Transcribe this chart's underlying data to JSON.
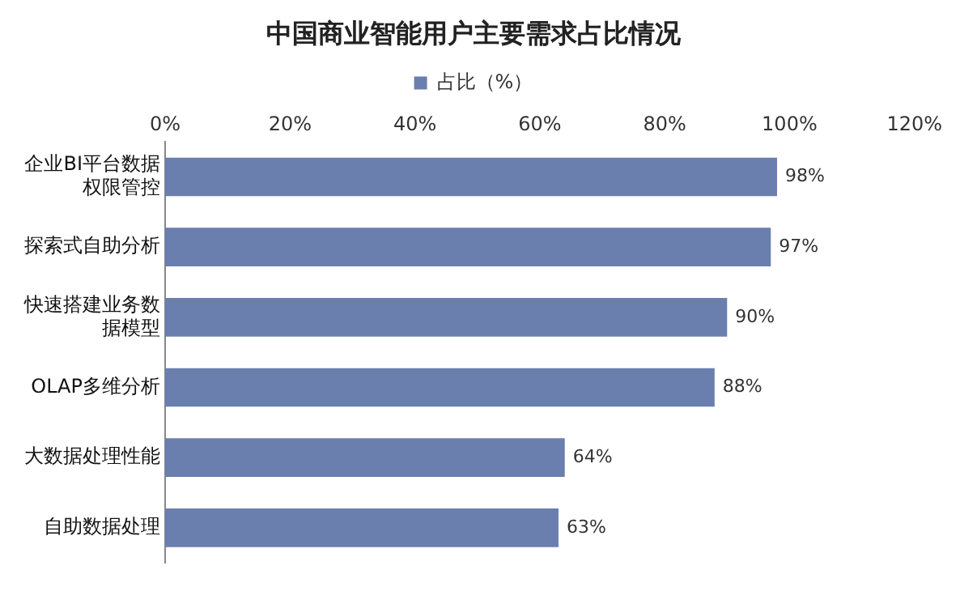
{
  "chart_data": {
    "type": "bar",
    "orientation": "horizontal",
    "title": "中国商业智能用户主要需求占比情况",
    "categories": [
      "企业BI平台数据权限管控",
      "探索式自助分析",
      "快速搭建业务数据模型",
      "OLAP多维分析",
      "大数据处理性能",
      "自助数据处理"
    ],
    "series": [
      {
        "name": "占比（%）",
        "color": "#6a7fae",
        "values": [
          98,
          97,
          90,
          88,
          64,
          63
        ],
        "value_labels": [
          "98%",
          "97%",
          "90%",
          "88%",
          "64%",
          "63%"
        ]
      }
    ],
    "xlim": [
      0,
      120
    ],
    "xticks": [
      {
        "value": 0,
        "label": "0%"
      },
      {
        "value": 20,
        "label": "20%"
      },
      {
        "value": 40,
        "label": "40%"
      },
      {
        "value": 60,
        "label": "60%"
      },
      {
        "value": 80,
        "label": "80%"
      },
      {
        "value": 100,
        "label": "100%"
      },
      {
        "value": 120,
        "label": "120%"
      }
    ],
    "legend": "top",
    "grid": false
  }
}
